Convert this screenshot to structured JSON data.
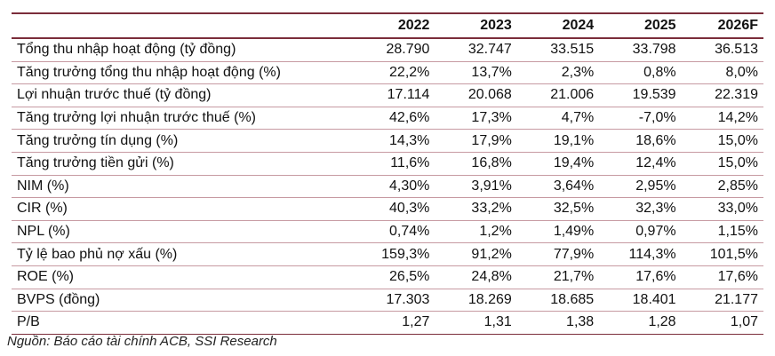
{
  "table": {
    "headers": [
      "",
      "2022",
      "2023",
      "2024",
      "2025",
      "2026F"
    ],
    "rows": [
      {
        "label": "Tổng thu nhập hoạt động (tỷ đồng)",
        "values": [
          "28.790",
          "32.747",
          "33.515",
          "33.798",
          "36.513"
        ]
      },
      {
        "label": "Tăng trưởng tổng thu nhập hoạt động (%)",
        "values": [
          "22,2%",
          "13,7%",
          "2,3%",
          "0,8%",
          "8,0%"
        ]
      },
      {
        "label": "Lợi nhuận trước thuế (tỷ đồng)",
        "values": [
          "17.114",
          "20.068",
          "21.006",
          "19.539",
          "22.319"
        ]
      },
      {
        "label": "Tăng trưởng lợi nhuận trước thuế (%)",
        "values": [
          "42,6%",
          "17,3%",
          "4,7%",
          "-7,0%",
          "14,2%"
        ]
      },
      {
        "label": "Tăng trưởng tín dụng (%)",
        "values": [
          "14,3%",
          "17,9%",
          "19,1%",
          "18,6%",
          "15,0%"
        ]
      },
      {
        "label": "Tăng trưởng tiền gửi (%)",
        "values": [
          "11,6%",
          "16,8%",
          "19,4%",
          "12,4%",
          "15,0%"
        ]
      },
      {
        "label": "NIM (%)",
        "values": [
          "4,30%",
          "3,91%",
          "3,64%",
          "2,95%",
          "2,85%"
        ]
      },
      {
        "label": "CIR (%)",
        "values": [
          "40,3%",
          "33,2%",
          "32,5%",
          "32,3%",
          "33,0%"
        ]
      },
      {
        "label": "NPL (%)",
        "values": [
          "0,74%",
          "1,2%",
          "1,49%",
          "0,97%",
          "1,15%"
        ]
      },
      {
        "label": "Tỷ lệ bao phủ nợ xấu (%)",
        "values": [
          "159,3%",
          "91,2%",
          "77,9%",
          "114,3%",
          "101,5%"
        ]
      },
      {
        "label": "ROE (%)",
        "values": [
          "26,5%",
          "24,8%",
          "21,7%",
          "17,6%",
          "17,6%"
        ]
      },
      {
        "label": "BVPS (đồng)",
        "values": [
          "17.303",
          "18.269",
          "18.685",
          "18.401",
          "21.177"
        ]
      },
      {
        "label": "P/B",
        "values": [
          "1,27",
          "1,31",
          "1,38",
          "1,28",
          "1,07"
        ]
      }
    ]
  },
  "source": "Nguồn: Báo cáo tài chính ACB, SSI Research",
  "colors": {
    "rule": "#7b2d3a",
    "row_divider": "#c79aa2"
  }
}
